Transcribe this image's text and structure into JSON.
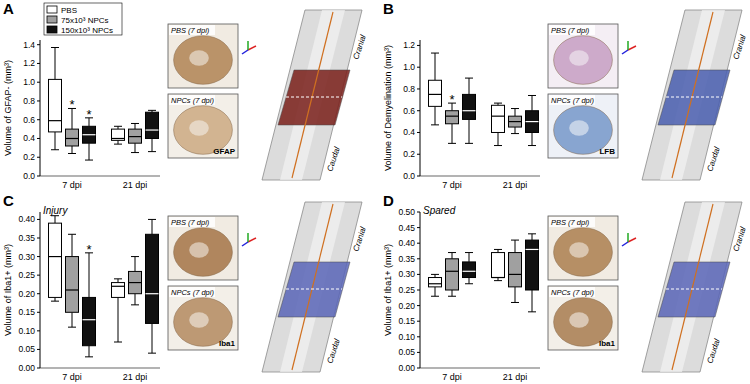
{
  "chart_data": [
    {
      "type": "box",
      "panel": "A",
      "ylabel": "Volume of GFAP- (mm³)",
      "legend": "top-left",
      "categories": [
        "7 dpi",
        "21 dpi"
      ],
      "ylim": [
        0,
        1.45
      ],
      "yticks": [
        {
          "value": 0,
          "label": "0.0"
        },
        0.2,
        0.4,
        0.6,
        0.8,
        {
          "value": 1,
          "label": "1.0"
        },
        1.2,
        1.4
      ],
      "series": [
        {
          "name": "PBS",
          "color": "#ffffff",
          "min": [
            0.28,
            0.34
          ],
          "q1": [
            0.47,
            0.38
          ],
          "median": [
            0.59,
            0.4
          ],
          "q3": [
            1.03,
            0.5
          ],
          "max": [
            1.37,
            0.53
          ]
        },
        {
          "name": "75x10³ NPCs",
          "color": "#a0a0a0",
          "min": [
            0.24,
            0.25
          ],
          "q1": [
            0.32,
            0.35
          ],
          "median": [
            0.4,
            0.42
          ],
          "q3": [
            0.5,
            0.5
          ],
          "max": [
            0.72,
            0.56
          ],
          "annotations": [
            "*",
            null
          ]
        },
        {
          "name": "150x10³ NPCs",
          "color": "#111111",
          "min": [
            0.17,
            0.26
          ],
          "q1": [
            0.35,
            0.4
          ],
          "median": [
            0.44,
            0.49
          ],
          "q3": [
            0.53,
            0.68
          ],
          "max": [
            0.62,
            0.7
          ],
          "annotations": [
            "*",
            null
          ]
        }
      ],
      "images": [
        {
          "caption": "PBS (7 dpi)"
        },
        {
          "caption": "NPCs (7 dpi)",
          "stain": "GFAP"
        }
      ],
      "render_labels": [
        "Cranial",
        "Caudal"
      ]
    },
    {
      "type": "box",
      "panel": "B",
      "ylabel": "Volume of Demyelination (mm³)",
      "categories": [
        "7 dpi",
        "21 dpi"
      ],
      "ylim": [
        0,
        1.25
      ],
      "yticks": [
        {
          "value": 0,
          "label": "0.0"
        },
        0.2,
        0.4,
        0.6,
        0.8,
        {
          "value": 1,
          "label": "1.0"
        },
        1.2
      ],
      "series": [
        {
          "color": "#ffffff",
          "min": [
            0.47,
            0.28
          ],
          "q1": [
            0.64,
            0.4
          ],
          "median": [
            0.75,
            0.55
          ],
          "q3": [
            0.88,
            0.65
          ],
          "max": [
            1.13,
            0.67
          ]
        },
        {
          "color": "#a0a0a0",
          "min": [
            0.3,
            0.39
          ],
          "q1": [
            0.48,
            0.45
          ],
          "median": [
            0.55,
            0.5
          ],
          "q3": [
            0.6,
            0.55
          ],
          "max": [
            0.67,
            0.62
          ],
          "annotations": [
            "*",
            null
          ]
        },
        {
          "color": "#111111",
          "min": [
            0.3,
            0.28
          ],
          "q1": [
            0.52,
            0.4
          ],
          "median": [
            0.6,
            0.5
          ],
          "q3": [
            0.75,
            0.6
          ],
          "max": [
            0.9,
            0.74
          ]
        }
      ],
      "images": [
        {
          "caption": "PBS (7 dpi)"
        },
        {
          "caption": "NPCs (7 dpi)",
          "stain": "LFB"
        }
      ],
      "render_labels": [
        "Cranial",
        "Caudal"
      ]
    },
    {
      "type": "box",
      "panel": "C",
      "subtitle": "Injury",
      "ylabel": "Volume of Iba1+ (mm³)",
      "categories": [
        "7 dpi",
        "21 dpi"
      ],
      "ylim": [
        0,
        0.42
      ],
      "yticks": [
        {
          "value": 0,
          "label": "0.00"
        },
        {
          "value": 0.05,
          "label": "0.05"
        },
        {
          "value": 0.1,
          "label": "0.10"
        },
        {
          "value": 0.15,
          "label": "0.15"
        },
        {
          "value": 0.2,
          "label": "0.20"
        },
        {
          "value": 0.25,
          "label": "0.25"
        },
        {
          "value": 0.3,
          "label": "0.30"
        },
        {
          "value": 0.35,
          "label": "0.35"
        },
        {
          "value": 0.4,
          "label": "0.40"
        }
      ],
      "series": [
        {
          "color": "#ffffff",
          "min": [
            0.18,
            0.07
          ],
          "q1": [
            0.19,
            0.19
          ],
          "median": [
            0.3,
            0.22
          ],
          "q3": [
            0.39,
            0.23
          ],
          "max": [
            0.41,
            0.24
          ]
        },
        {
          "color": "#a0a0a0",
          "min": [
            0.11,
            0.17
          ],
          "q1": [
            0.15,
            0.2
          ],
          "median": [
            0.21,
            0.23
          ],
          "q3": [
            0.3,
            0.26
          ],
          "max": [
            0.36,
            0.3
          ]
        },
        {
          "color": "#111111",
          "min": [
            0.03,
            0.04
          ],
          "q1": [
            0.06,
            0.12
          ],
          "median": [
            0.13,
            0.2
          ],
          "q3": [
            0.19,
            0.36
          ],
          "max": [
            0.31,
            0.4
          ],
          "annotations": [
            "*",
            null
          ]
        }
      ],
      "images": [
        {
          "caption": "PBS (7 dpi)"
        },
        {
          "caption": "NPCs (7 dpi)",
          "stain": "Iba1"
        }
      ],
      "render_labels": [
        "Cranial",
        "Caudal"
      ]
    },
    {
      "type": "box",
      "panel": "D",
      "subtitle": "Spared",
      "ylabel": "Volume of Iba1+ (mm³)",
      "categories": [
        "7 dpi",
        "21 dpi"
      ],
      "ylim": [
        0,
        0.5
      ],
      "yticks": [
        {
          "value": 0,
          "label": "0.00"
        },
        {
          "value": 0.05,
          "label": "0.05"
        },
        {
          "value": 0.1,
          "label": "0.10"
        },
        {
          "value": 0.15,
          "label": "0.15"
        },
        {
          "value": 0.2,
          "label": "0.20"
        },
        {
          "value": 0.25,
          "label": "0.25"
        },
        {
          "value": 0.3,
          "label": "0.30"
        },
        {
          "value": 0.35,
          "label": "0.35"
        },
        {
          "value": 0.4,
          "label": "0.40"
        },
        {
          "value": 0.45,
          "label": "0.45"
        },
        {
          "value": 0.5,
          "label": "0.50"
        }
      ],
      "series": [
        {
          "color": "#ffffff",
          "min": [
            0.23,
            0.28
          ],
          "q1": [
            0.26,
            0.29
          ],
          "median": [
            0.27,
            0.29
          ],
          "q3": [
            0.29,
            0.37
          ],
          "max": [
            0.3,
            0.38
          ]
        },
        {
          "color": "#a0a0a0",
          "min": [
            0.23,
            0.21
          ],
          "q1": [
            0.25,
            0.26
          ],
          "median": [
            0.31,
            0.3
          ],
          "q3": [
            0.35,
            0.37
          ],
          "max": [
            0.37,
            0.41
          ]
        },
        {
          "color": "#111111",
          "min": [
            0.27,
            0.18
          ],
          "q1": [
            0.29,
            0.25
          ],
          "median": [
            0.31,
            0.38
          ],
          "q3": [
            0.34,
            0.41
          ],
          "max": [
            0.37,
            0.43
          ]
        }
      ],
      "images": [
        {
          "caption": "PBS (7 dpi)"
        },
        {
          "caption": "NPCs (7 dpi)",
          "stain": "Iba1"
        }
      ],
      "render_labels": [
        "Cranial",
        "Caudal"
      ]
    }
  ]
}
